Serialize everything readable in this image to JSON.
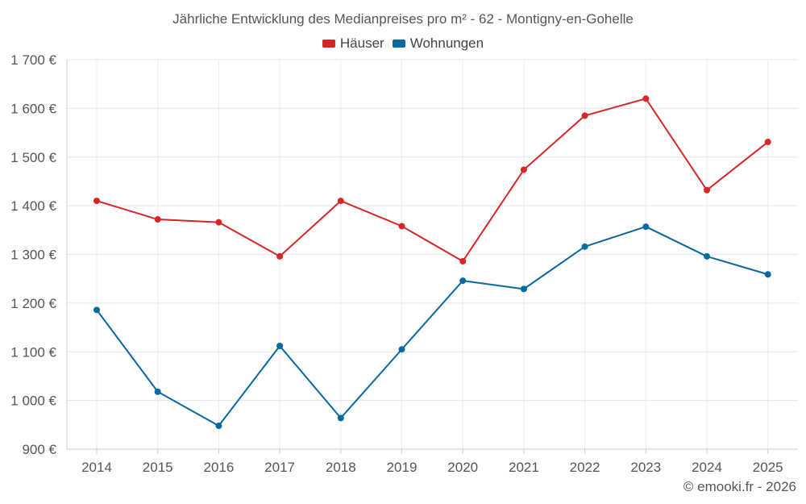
{
  "chart_data": {
    "type": "line",
    "title": "Jährliche Entwicklung des Medianpreises pro m² - 62 - Montigny-en-Gohelle",
    "categories": [
      "2014",
      "2015",
      "2016",
      "2017",
      "2018",
      "2019",
      "2020",
      "2021",
      "2022",
      "2023",
      "2024",
      "2025"
    ],
    "ylim": [
      900,
      1700
    ],
    "yticks": [
      900,
      1000,
      1100,
      1200,
      1300,
      1400,
      1500,
      1600,
      1700
    ],
    "ytick_labels": [
      "900 €",
      "1 000 €",
      "1 100 €",
      "1 200 €",
      "1 300 €",
      "1 400 €",
      "1 500 €",
      "1 600 €",
      "1 700 €"
    ],
    "grid": true,
    "legend_position": "top-center",
    "series": [
      {
        "name": "Häuser",
        "color": "#d62728",
        "values": [
          1410,
          1372,
          1366,
          1296,
          1410,
          1358,
          1286,
          1474,
          1585,
          1620,
          1432,
          1531
        ]
      },
      {
        "name": "Wohnungen",
        "color": "#0868a0",
        "values": [
          1186,
          1018,
          948,
          1112,
          964,
          1105,
          1246,
          1229,
          1316,
          1357,
          1296,
          1259
        ]
      }
    ]
  },
  "credit": "© emooki.fr - 2026"
}
